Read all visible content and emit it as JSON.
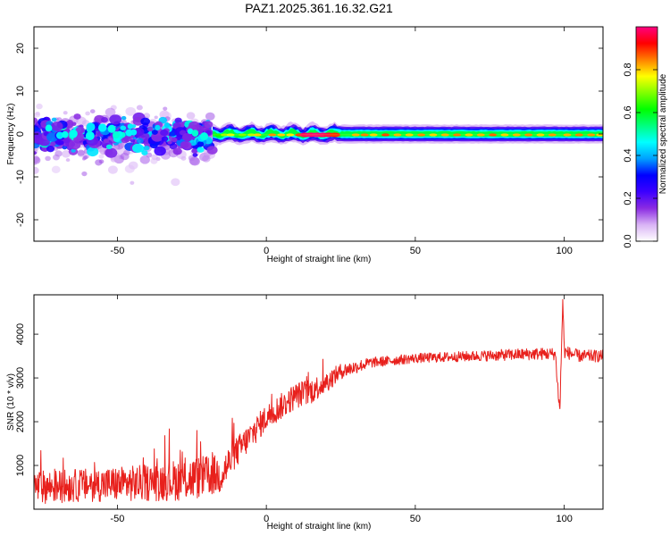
{
  "title": "PAZ1.2025.361.16.32.G21",
  "colors": {
    "snr_line": "#e8201c",
    "frame": "#000000",
    "background": "#ffffff"
  },
  "chart_data": [
    {
      "type": "heatmap",
      "name": "spectrogram",
      "title": "PAZ1.2025.361.16.32.G21",
      "xlabel": "Height of straight line (km)",
      "ylabel": "Frequency (Hz)",
      "xlim": [
        -78,
        113
      ],
      "ylim": [
        -25,
        25
      ],
      "xticks": [
        -50,
        0,
        50,
        100
      ],
      "yticks": [
        -20,
        -10,
        0,
        10,
        20
      ],
      "x_tick_labels": [
        "-50",
        "0",
        "50",
        "100"
      ],
      "y_tick_labels": [
        "-20",
        "-10",
        "0",
        "10",
        "20"
      ],
      "description_of_structure": {
        "scattered_region_km": [
          -78,
          -18
        ],
        "scattered_freq_range_hz": [
          -10,
          6
        ],
        "narrow_band_region_km": [
          -18,
          113
        ],
        "narrow_band_center_hz": 0
      },
      "colorbar": {
        "label": "Normalized spectral amplitude",
        "range": [
          0.0,
          1.0
        ],
        "ticks": [
          0.0,
          0.2,
          0.4,
          0.6,
          0.8
        ],
        "tick_labels": [
          "0.0",
          "0.2",
          "0.4",
          "0.6",
          "0.8"
        ],
        "colormap": [
          "#ffffff",
          "#d9b3f5",
          "#8a2be2",
          "#3b00ff",
          "#0000ff",
          "#00a0ff",
          "#00ffff",
          "#00ff80",
          "#00ff00",
          "#80ff00",
          "#ffff00",
          "#ff8000",
          "#ff0000",
          "#ff0080"
        ]
      }
    },
    {
      "type": "line",
      "name": "snr",
      "xlabel": "Height of straight line (km)",
      "ylabel": "SNR (10 * v/v)",
      "xlim": [
        -78,
        113
      ],
      "ylim": [
        0,
        4900
      ],
      "xticks": [
        -50,
        0,
        50,
        100
      ],
      "yticks": [
        1000,
        2000,
        3000,
        4000
      ],
      "x_tick_labels": [
        "-50",
        "0",
        "50",
        "100"
      ],
      "y_tick_labels": [
        "1000",
        "2000",
        "3000",
        "4000"
      ],
      "series": [
        {
          "name": "SNR",
          "trend_x": [
            -78,
            -60,
            -40,
            -25,
            -15,
            -10,
            0,
            10,
            15,
            20,
            25,
            35,
            50,
            70,
            90,
            97,
            98.5,
            99.5,
            100,
            105,
            113
          ],
          "trend_y": [
            500,
            550,
            600,
            700,
            800,
            1300,
            2100,
            2600,
            2700,
            2900,
            3150,
            3350,
            3450,
            3500,
            3550,
            3550,
            2200,
            4800,
            3600,
            3500,
            3500
          ],
          "noise_amplitude": [
            380,
            380,
            420,
            500,
            450,
            350,
            300,
            300,
            300,
            250,
            180,
            120,
            110,
            120,
            140,
            140,
            200,
            200,
            150,
            140,
            140
          ]
        }
      ]
    }
  ]
}
